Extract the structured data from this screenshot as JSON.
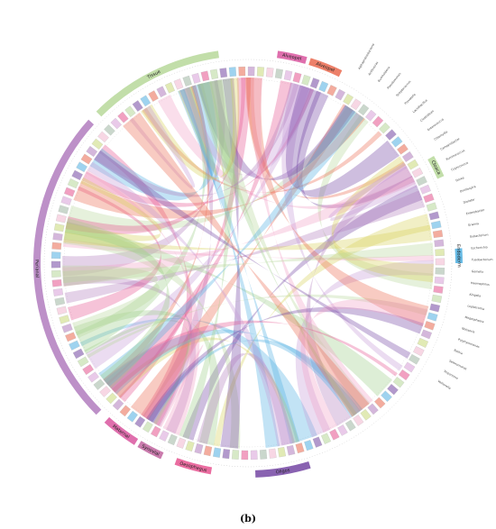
{
  "caption": "(b)",
  "diagram": {
    "type": "chord",
    "segments": [
      {
        "label": "Tissue",
        "color": "#b7d89a"
      },
      {
        "label": "Alveopel",
        "color": "#d9569f"
      },
      {
        "label": "Alveopel",
        "color": "#ea6a4f"
      },
      {
        "label": "Perianal",
        "color": "#b27dbe"
      },
      {
        "label": "Maternal",
        "color": "#d9569f"
      },
      {
        "label": "Synovial",
        "color": "#c1649f"
      },
      {
        "label": "Cloaca",
        "color": "#b7d89a"
      },
      {
        "label": "Endoderm",
        "color": "#4fb0e2"
      },
      {
        "label": "Oligos",
        "color": "#7446a3"
      },
      {
        "label": "Oesophagus",
        "color": "#e6538f"
      }
    ],
    "taxa": [
      "Alphaproteobacteria",
      "Acidovorax",
      "Burkholderia",
      "Pseudomonas",
      "Streptococcus",
      "Prevotella",
      "Lactobacillus",
      "Clostridium",
      "Enterococcus",
      "Chlamydia",
      "Campylobacter",
      "Ruminococcus",
      "Coprococcus",
      "Dorea",
      "Oscillospira",
      "Dialister",
      "Enterobacter",
      "Erwinia",
      "Eubacterium",
      "Escherichia",
      "Fusobacterium",
      "Gemella",
      "Haemophilus",
      "Kingella",
      "Leptotrichia",
      "Megasphaera",
      "Neisseria",
      "Porphyromonas",
      "Rothia",
      "Selenomonas",
      "Treponema",
      "Veillonella"
    ]
  }
}
